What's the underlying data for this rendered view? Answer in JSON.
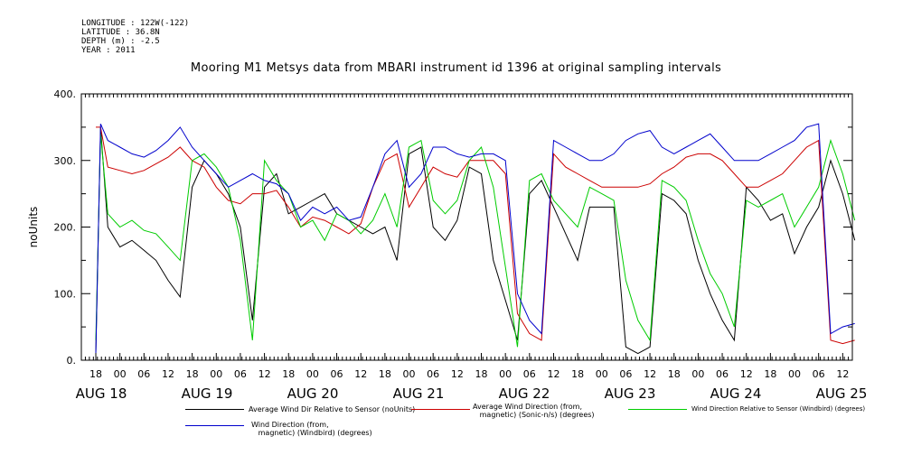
{
  "meta": {
    "longitude": "LONGITUDE : 122W(-122)",
    "latitude": "LATITUDE : 36.8N",
    "depth": "DEPTH (m) : -2.5",
    "year": "YEAR : 2011"
  },
  "chart_data": {
    "type": "line",
    "title": "Mooring M1 Metsys data from MBARI instrument id 1396 at original sampling intervals",
    "ylabel": "noUnits",
    "xlabel": "",
    "ylim": [
      0,
      400
    ],
    "yticks": [
      "0.",
      "100.",
      "200.",
      "300.",
      "400."
    ],
    "hour_ticks": [
      "18",
      "00",
      "06",
      "12",
      "18",
      "00",
      "06",
      "12",
      "18",
      "00",
      "06",
      "12",
      "18",
      "00",
      "06",
      "12",
      "18",
      "00",
      "06",
      "12",
      "18",
      "00",
      "06",
      "12",
      "18",
      "00",
      "06",
      "12",
      "18",
      "00",
      "06",
      "12"
    ],
    "day_labels": [
      "AUG 18",
      "AUG 19",
      "AUG 20",
      "AUG 21",
      "AUG 22",
      "AUG 23",
      "AUG 24",
      "AUG 25"
    ],
    "grid": false,
    "series": [
      {
        "name": "Average Wind Dir Relative to Sensor (noUnits)",
        "color": "#000000",
        "x": [
          0,
          0.2,
          0.5,
          1,
          1.5,
          2,
          2.5,
          3,
          3.5,
          4,
          4.5,
          5,
          5.5,
          6,
          6.5,
          7,
          7.5,
          8,
          8.5,
          9,
          9.5,
          10,
          10.5,
          11,
          11.5,
          12,
          12.5,
          13,
          13.5,
          14,
          14.5,
          15,
          15.5,
          16,
          16.5,
          17,
          17.5,
          18,
          18.5,
          19,
          19.5,
          20,
          20.5,
          21,
          21.5,
          22,
          22.5,
          23,
          23.5,
          24,
          24.5,
          25,
          25.5,
          26,
          26.5,
          27,
          27.5,
          28,
          28.5,
          29,
          29.5,
          30,
          30.5,
          31,
          31.5
        ],
        "values": [
          10,
          350,
          200,
          170,
          180,
          165,
          150,
          120,
          95,
          260,
          300,
          280,
          250,
          200,
          60,
          260,
          280,
          220,
          230,
          240,
          250,
          220,
          210,
          200,
          190,
          200,
          150,
          310,
          320,
          200,
          180,
          210,
          290,
          280,
          150,
          90,
          30,
          250,
          270,
          230,
          190,
          150,
          230,
          230,
          230,
          20,
          10,
          20,
          250,
          240,
          220,
          150,
          100,
          60,
          30,
          260,
          240,
          210,
          220,
          160,
          200,
          230,
          300,
          250,
          180
        ]
      },
      {
        "name": "Average Wind Direction (from, magnetic) (Sonic-n/s) (degrees)",
        "color": "#cc0000",
        "x": [
          0,
          0.2,
          0.5,
          1,
          1.5,
          2,
          2.5,
          3,
          3.5,
          4,
          4.5,
          5,
          5.5,
          6,
          6.5,
          7,
          7.5,
          8,
          8.5,
          9,
          9.5,
          10,
          10.5,
          11,
          11.5,
          12,
          12.5,
          13,
          13.5,
          14,
          14.5,
          15,
          15.5,
          16,
          16.5,
          17,
          17.5,
          18,
          18.5,
          19,
          19.5,
          20,
          20.5,
          21,
          21.5,
          22,
          22.5,
          23,
          23.5,
          24,
          24.5,
          25,
          25.5,
          26,
          26.5,
          27,
          27.5,
          28,
          28.5,
          29,
          29.5,
          30,
          30.5,
          31,
          31.5
        ],
        "values": [
          350,
          350,
          290,
          285,
          280,
          285,
          295,
          305,
          320,
          300,
          290,
          260,
          240,
          235,
          250,
          250,
          255,
          230,
          200,
          215,
          210,
          200,
          190,
          205,
          260,
          300,
          310,
          230,
          260,
          290,
          280,
          275,
          300,
          300,
          300,
          280,
          70,
          40,
          30,
          310,
          290,
          280,
          270,
          260,
          260,
          260,
          260,
          265,
          280,
          290,
          305,
          310,
          310,
          300,
          280,
          260,
          260,
          270,
          280,
          300,
          320,
          330,
          30,
          25,
          30
        ]
      },
      {
        "name": "Wind Direction Relative to Sensor (Windbird) (degrees)",
        "color": "#00cc00",
        "x": [
          0,
          0.2,
          0.5,
          1,
          1.5,
          2,
          2.5,
          3,
          3.5,
          4,
          4.5,
          5,
          5.5,
          6,
          6.5,
          7,
          7.5,
          8,
          8.5,
          9,
          9.5,
          10,
          10.5,
          11,
          11.5,
          12,
          12.5,
          13,
          13.5,
          14,
          14.5,
          15,
          15.5,
          16,
          16.5,
          17,
          17.5,
          18,
          18.5,
          19,
          19.5,
          20,
          20.5,
          21,
          21.5,
          22,
          22.5,
          23,
          23.5,
          24,
          24.5,
          25,
          25.5,
          26,
          26.5,
          27,
          27.5,
          28,
          28.5,
          29,
          29.5,
          30,
          30.5,
          31,
          31.5
        ],
        "values": [
          30,
          340,
          220,
          200,
          210,
          195,
          190,
          170,
          150,
          300,
          310,
          290,
          260,
          180,
          30,
          300,
          270,
          250,
          200,
          210,
          180,
          220,
          210,
          190,
          210,
          250,
          200,
          320,
          330,
          240,
          220,
          240,
          300,
          320,
          260,
          140,
          20,
          270,
          280,
          240,
          220,
          200,
          260,
          250,
          240,
          120,
          60,
          30,
          270,
          260,
          240,
          180,
          130,
          100,
          50,
          240,
          230,
          240,
          250,
          200,
          230,
          260,
          330,
          280,
          210
        ]
      },
      {
        "name": "Wind Direction (from, magnetic) (Windbird) (degrees)",
        "color": "#0000cc",
        "x": [
          0,
          0.2,
          0.5,
          1,
          1.5,
          2,
          2.5,
          3,
          3.5,
          4,
          4.5,
          5,
          5.5,
          6,
          6.5,
          7,
          7.5,
          8,
          8.5,
          9,
          9.5,
          10,
          10.5,
          11,
          11.5,
          12,
          12.5,
          13,
          13.5,
          14,
          14.5,
          15,
          15.5,
          16,
          16.5,
          17,
          17.5,
          18,
          18.5,
          19,
          19.5,
          20,
          20.5,
          21,
          21.5,
          22,
          22.5,
          23,
          23.5,
          24,
          24.5,
          25,
          25.5,
          26,
          26.5,
          27,
          27.5,
          28,
          28.5,
          29,
          29.5,
          30,
          30.5,
          31,
          31.5
        ],
        "values": [
          10,
          355,
          330,
          320,
          310,
          305,
          315,
          330,
          350,
          320,
          300,
          280,
          260,
          270,
          280,
          270,
          265,
          250,
          210,
          230,
          220,
          230,
          210,
          215,
          260,
          310,
          330,
          260,
          280,
          320,
          320,
          310,
          305,
          310,
          310,
          300,
          100,
          60,
          40,
          330,
          320,
          310,
          300,
          300,
          310,
          330,
          340,
          345,
          320,
          310,
          320,
          330,
          340,
          320,
          300,
          300,
          300,
          310,
          320,
          330,
          350,
          355,
          40,
          50,
          55
        ]
      }
    ],
    "legend": [
      {
        "label": "Average Wind Dir Relative to Sensor (noUnits)",
        "color": "#000000"
      },
      {
        "label": "Average Wind Direction (from,\n   magnetic) (Sonic-n/s) (degrees)",
        "color": "#cc0000"
      },
      {
        "label": "Wind Direction Relative to Sensor (Windbird) (degrees)",
        "color": "#00cc00"
      },
      {
        "label": "Wind Direction (from,\n   magnetic) (Windbird) (degrees)",
        "color": "#0000cc"
      }
    ]
  }
}
